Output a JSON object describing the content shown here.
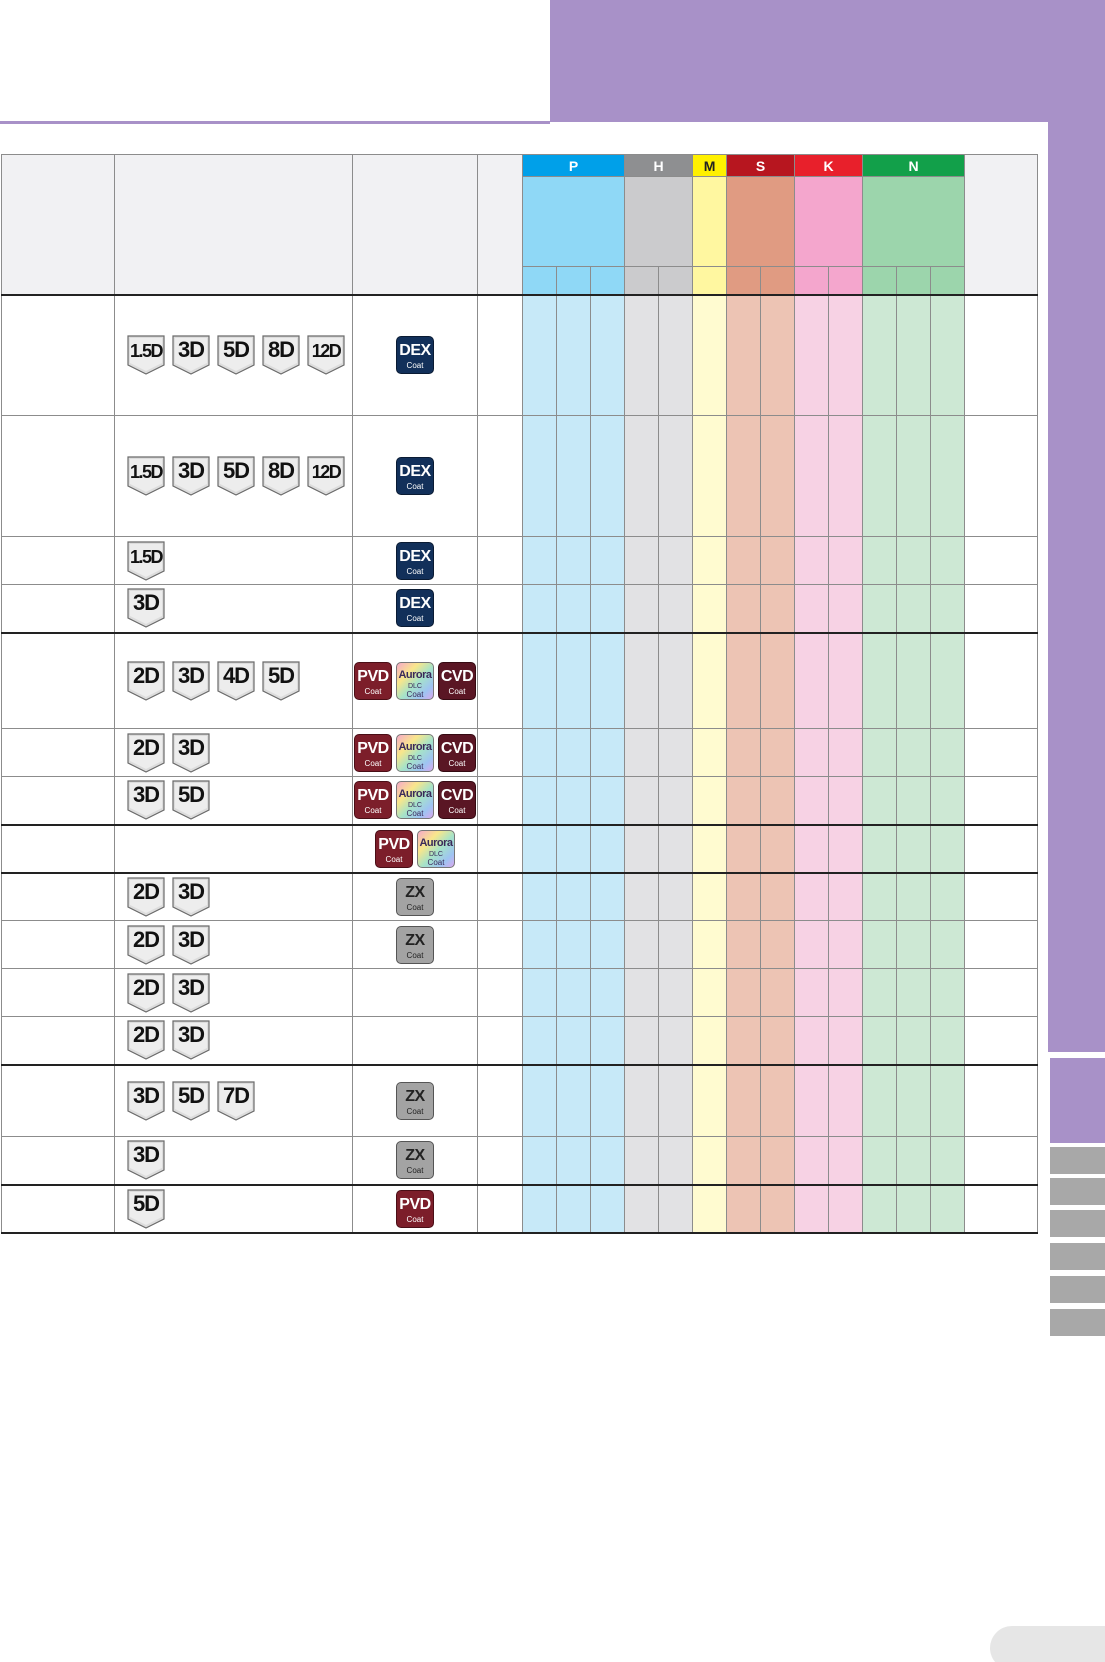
{
  "header": {
    "color": "#a891c8"
  },
  "groups": [
    {
      "label": "P",
      "span": 3,
      "color": "#00a0e9"
    },
    {
      "label": "H",
      "span": 2,
      "color": "#8e8f91"
    },
    {
      "label": "M",
      "span": 1,
      "color": "#fff000"
    },
    {
      "label": "S",
      "span": 2,
      "color": "#b7161f"
    },
    {
      "label": "K",
      "span": 2,
      "color": "#e8202b"
    },
    {
      "label": "N",
      "span": 3,
      "color": "#12a04a"
    }
  ],
  "header_shades": [
    "#8fd8f6",
    "#8fd8f6",
    "#8fd8f6",
    "#cbcbcd",
    "#cbcbcd",
    "#fff7a0",
    "#e09b82",
    "#e09b82",
    "#f4a6cd",
    "#f4a6cd",
    "#9cd5ac",
    "#9cd5ac",
    "#9cd5ac"
  ],
  "body_shades": [
    "#c7e9f8",
    "#c7e9f8",
    "#c7e9f8",
    "#e2e2e4",
    "#e2e2e4",
    "#fffbd0",
    "#edc4b4",
    "#edc4b4",
    "#f7d2e4",
    "#f7d2e4",
    "#cde8d4",
    "#cde8d4",
    "#cde8d4"
  ],
  "rows": [
    {
      "h": 121,
      "thick": true,
      "depths": [
        "1.5D",
        "3D",
        "5D",
        "8D",
        "12D"
      ],
      "coats": [
        "DEX"
      ]
    },
    {
      "h": 121,
      "thick": false,
      "depths": [
        "1.5D",
        "3D",
        "5D",
        "8D",
        "12D"
      ],
      "coats": [
        "DEX"
      ]
    },
    {
      "h": 48,
      "thick": false,
      "depths": [
        "1.5D"
      ],
      "coats": [
        "DEX"
      ]
    },
    {
      "h": 48,
      "thick": false,
      "depths": [
        "3D"
      ],
      "coats": [
        "DEX"
      ]
    },
    {
      "h": 96,
      "thick": true,
      "depths": [
        "2D",
        "3D",
        "4D",
        "5D"
      ],
      "coats": [
        "PVD",
        "Aurora",
        "CVD"
      ]
    },
    {
      "h": 48,
      "thick": false,
      "depths": [
        "2D",
        "3D"
      ],
      "coats": [
        "PVD",
        "Aurora",
        "CVD"
      ]
    },
    {
      "h": 48,
      "thick": false,
      "depths": [
        "3D",
        "5D"
      ],
      "coats": [
        "PVD",
        "Aurora",
        "CVD"
      ]
    },
    {
      "h": 48,
      "thick": true,
      "depths": [],
      "coats": [
        "PVD",
        "Aurora"
      ]
    },
    {
      "h": 48,
      "thick": true,
      "depths": [
        "2D",
        "3D"
      ],
      "coats": [
        "ZX"
      ]
    },
    {
      "h": 48,
      "thick": false,
      "depths": [
        "2D",
        "3D"
      ],
      "coats": [
        "ZX"
      ]
    },
    {
      "h": 48,
      "thick": false,
      "depths": [
        "2D",
        "3D"
      ],
      "coats": []
    },
    {
      "h": 48,
      "thick": false,
      "depths": [
        "2D",
        "3D"
      ],
      "coats": []
    },
    {
      "h": 72,
      "thick": true,
      "depths": [
        "3D",
        "5D",
        "7D"
      ],
      "coats": [
        "ZX"
      ]
    },
    {
      "h": 48,
      "thick": false,
      "depths": [
        "3D"
      ],
      "coats": [
        "ZX"
      ]
    },
    {
      "h": 48,
      "thick": true,
      "depths": [
        "5D"
      ],
      "coats": [
        "PVD"
      ]
    }
  ],
  "coat_types": {
    "DEX": {
      "text": "DEX",
      "sub": "Coat",
      "cls": "dex"
    },
    "PVD": {
      "text": "PVD",
      "sub": "Coat",
      "cls": "pvd"
    },
    "CVD": {
      "text": "CVD",
      "sub": "Coat",
      "cls": "cvd"
    },
    "ZX": {
      "text": "ZX",
      "sub": "Coat",
      "cls": "zx"
    },
    "Aurora": {
      "text": "Aurora",
      "mid": "DLC",
      "sub": "Coat",
      "cls": "aurora"
    }
  }
}
